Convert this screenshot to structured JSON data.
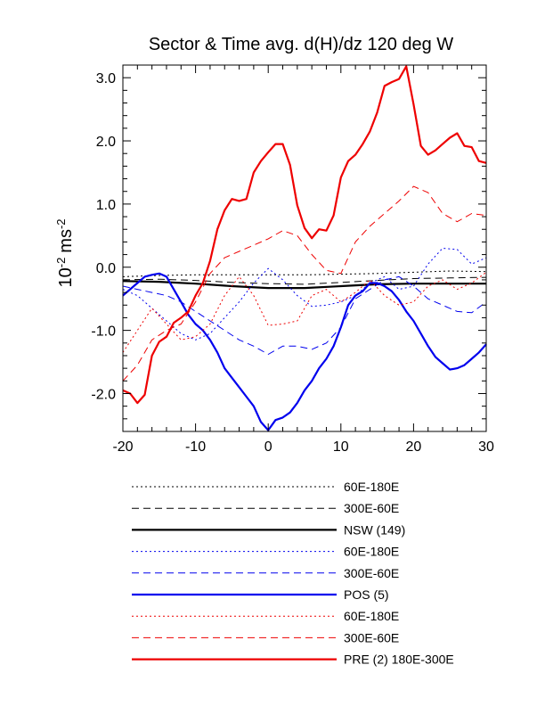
{
  "chart_data": {
    "type": "line",
    "title": "Sector & Time avg. d(H)/dz 120 deg W",
    "ylabel": {
      "base": "10",
      "base_exp": "-2",
      "unit": "ms",
      "unit_exp": "-2"
    },
    "xlabel": "",
    "xlim": [
      -20,
      30
    ],
    "ylim": [
      -2.6,
      3.2
    ],
    "xticks": [
      "-20",
      "-10",
      "0",
      "10",
      "20",
      "30"
    ],
    "yticks": [
      "3.0",
      "2.0",
      "1.0",
      "0.0",
      "-1.0",
      "-2.0"
    ],
    "grid": false,
    "legend_position": "below",
    "series": [
      {
        "name": "60E-180E",
        "color": "#000000",
        "dash": "dotted",
        "width": 1,
        "x": [
          -20,
          -15,
          -10,
          -5,
          0,
          5,
          10,
          15,
          20,
          25,
          30
        ],
        "y": [
          -0.15,
          -0.13,
          -0.12,
          -0.12,
          -0.12,
          -0.12,
          -0.11,
          -0.1,
          -0.08,
          -0.06,
          -0.07
        ]
      },
      {
        "name": "300E-60E",
        "color": "#000000",
        "dash": "dashed",
        "width": 1,
        "x": [
          -20,
          -15,
          -10,
          -5,
          0,
          5,
          10,
          15,
          20,
          25,
          30
        ],
        "y": [
          -0.2,
          -0.19,
          -0.21,
          -0.24,
          -0.26,
          -0.27,
          -0.24,
          -0.21,
          -0.18,
          -0.17,
          -0.16
        ]
      },
      {
        "name": "NSW (149)",
        "color": "#000000",
        "dash": "solid",
        "width": 2.2,
        "x": [
          -20,
          -15,
          -10,
          -5,
          0,
          5,
          10,
          15,
          20,
          25,
          30
        ],
        "y": [
          -0.22,
          -0.23,
          -0.26,
          -0.3,
          -0.33,
          -0.33,
          -0.3,
          -0.27,
          -0.26,
          -0.26,
          -0.26
        ]
      },
      {
        "name": "60E-180E",
        "color": "#0000ee",
        "dash": "dotted",
        "width": 1,
        "x": [
          -20,
          -18,
          -16,
          -14,
          -12,
          -10,
          -8,
          -6,
          -4,
          -2,
          0,
          2,
          4,
          6,
          8,
          10,
          12,
          14,
          16,
          18,
          20,
          22,
          24,
          26,
          28,
          30
        ],
        "y": [
          -0.35,
          -0.45,
          -0.65,
          -0.85,
          -1.05,
          -1.15,
          -1.05,
          -0.8,
          -0.55,
          -0.25,
          -0.02,
          -0.2,
          -0.45,
          -0.62,
          -0.6,
          -0.55,
          -0.45,
          -0.25,
          -0.15,
          -0.35,
          -0.3,
          0.05,
          0.3,
          0.28,
          0.05,
          0.15
        ]
      },
      {
        "name": "300E-60E",
        "color": "#0000ee",
        "dash": "dashed",
        "width": 1,
        "x": [
          -20,
          -18,
          -16,
          -14,
          -12,
          -10,
          -8,
          -6,
          -4,
          -2,
          0,
          2,
          4,
          6,
          8,
          10,
          12,
          14,
          16,
          18,
          20,
          22,
          24,
          26,
          28,
          30
        ],
        "y": [
          -0.3,
          -0.35,
          -0.4,
          -0.45,
          -0.55,
          -0.7,
          -0.85,
          -1.0,
          -1.15,
          -1.25,
          -1.38,
          -1.25,
          -1.25,
          -1.3,
          -1.2,
          -0.95,
          -0.5,
          -0.35,
          -0.2,
          -0.15,
          -0.3,
          -0.5,
          -0.6,
          -0.7,
          -0.72,
          -0.55
        ]
      },
      {
        "name": "POS (5)",
        "color": "#0000ee",
        "dash": "solid",
        "width": 2.2,
        "x": [
          -20,
          -18,
          -17,
          -16,
          -15,
          -14,
          -13,
          -12,
          -11,
          -10,
          -9,
          -8,
          -7,
          -6,
          -5,
          -4,
          -3,
          -2,
          -1,
          0,
          1,
          2,
          3,
          4,
          5,
          6,
          7,
          8,
          9,
          10,
          11,
          12,
          13,
          14,
          15,
          16,
          17,
          18,
          19,
          20,
          21,
          22,
          23,
          24,
          25,
          26,
          27,
          28,
          29,
          30
        ],
        "y": [
          -0.45,
          -0.25,
          -0.15,
          -0.12,
          -0.1,
          -0.15,
          -0.35,
          -0.55,
          -0.75,
          -0.9,
          -1.0,
          -1.15,
          -1.35,
          -1.6,
          -1.75,
          -1.9,
          -2.05,
          -2.2,
          -2.45,
          -2.58,
          -2.42,
          -2.38,
          -2.3,
          -2.15,
          -1.95,
          -1.8,
          -1.6,
          -1.45,
          -1.25,
          -0.95,
          -0.6,
          -0.45,
          -0.38,
          -0.25,
          -0.25,
          -0.3,
          -0.38,
          -0.52,
          -0.7,
          -0.85,
          -1.05,
          -1.25,
          -1.42,
          -1.52,
          -1.62,
          -1.6,
          -1.55,
          -1.45,
          -1.35,
          -1.22
        ]
      },
      {
        "name": "60E-180E",
        "color": "#ee0000",
        "dash": "dotted",
        "width": 1,
        "x": [
          -20,
          -18,
          -16,
          -14,
          -12,
          -10,
          -8,
          -6,
          -4,
          -2,
          0,
          2,
          4,
          6,
          8,
          10,
          12,
          14,
          16,
          18,
          20,
          22,
          24,
          26,
          28,
          30
        ],
        "y": [
          -1.35,
          -1.0,
          -0.65,
          -0.9,
          -1.15,
          -1.1,
          -0.9,
          -0.45,
          -0.15,
          -0.45,
          -0.92,
          -0.9,
          -0.85,
          -0.45,
          -0.35,
          -0.55,
          -0.4,
          -0.2,
          -0.45,
          -0.6,
          -0.55,
          -0.3,
          -0.2,
          -0.35,
          -0.25,
          -0.08
        ]
      },
      {
        "name": "300E-60E",
        "color": "#ee0000",
        "dash": "dashed",
        "width": 1,
        "x": [
          -20,
          -18,
          -16,
          -14,
          -12,
          -10,
          -8,
          -6,
          -4,
          -2,
          0,
          2,
          4,
          6,
          8,
          10,
          12,
          14,
          16,
          18,
          20,
          22,
          24,
          26,
          28,
          30
        ],
        "y": [
          -1.8,
          -1.55,
          -1.15,
          -1.0,
          -0.9,
          -0.55,
          -0.1,
          0.15,
          0.25,
          0.35,
          0.45,
          0.58,
          0.5,
          0.2,
          -0.05,
          -0.1,
          0.4,
          0.65,
          0.85,
          1.05,
          1.28,
          1.18,
          0.85,
          0.72,
          0.85,
          0.82
        ]
      },
      {
        "name": "PRE (2) 180E-300E",
        "color": "#ee0000",
        "dash": "solid",
        "width": 2.2,
        "x": [
          -20,
          -19,
          -18,
          -17,
          -16,
          -15,
          -14,
          -13,
          -12,
          -11,
          -10,
          -9,
          -8,
          -7,
          -6,
          -5,
          -4,
          -3,
          -2,
          -1,
          0,
          1,
          2,
          3,
          4,
          5,
          6,
          7,
          8,
          9,
          10,
          11,
          12,
          13,
          14,
          15,
          16,
          17,
          18,
          19,
          20,
          21,
          22,
          23,
          24,
          25,
          26,
          27,
          28,
          29,
          30
        ],
        "y": [
          -1.95,
          -2.0,
          -2.15,
          -2.02,
          -1.4,
          -1.18,
          -1.1,
          -0.88,
          -0.8,
          -0.7,
          -0.45,
          -0.25,
          0.1,
          0.6,
          0.9,
          1.08,
          1.05,
          1.08,
          1.5,
          1.68,
          1.82,
          1.95,
          1.95,
          1.62,
          0.98,
          0.62,
          0.46,
          0.6,
          0.58,
          0.82,
          1.42,
          1.68,
          1.78,
          1.95,
          2.15,
          2.45,
          2.87,
          2.93,
          2.98,
          3.18,
          2.58,
          1.92,
          1.78,
          1.85,
          1.95,
          2.05,
          2.12,
          1.92,
          1.9,
          1.68,
          1.65
        ]
      }
    ]
  }
}
